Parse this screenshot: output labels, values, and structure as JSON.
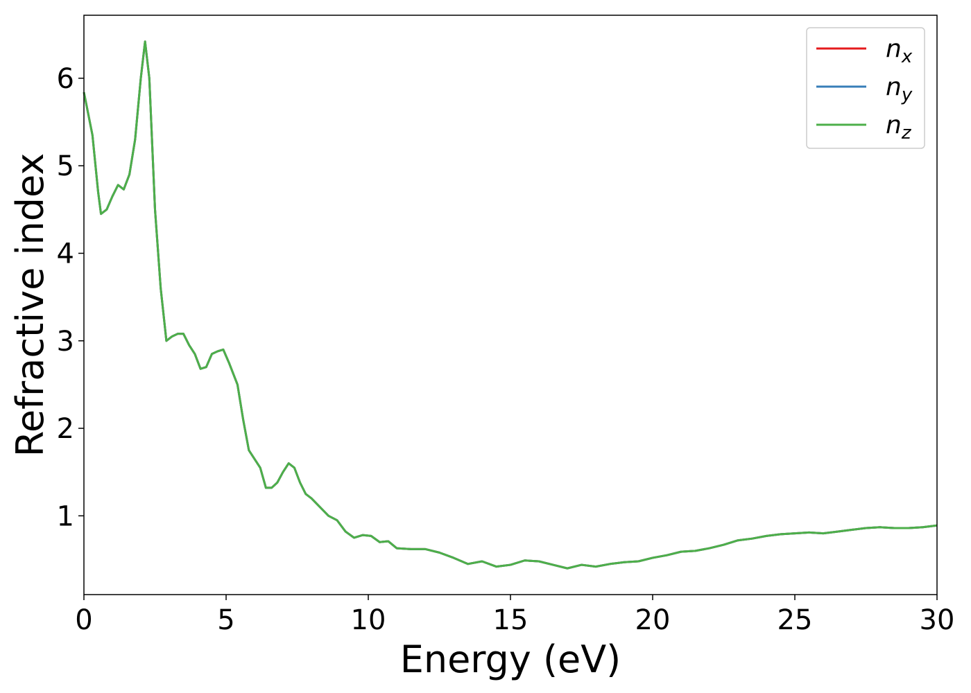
{
  "chart_data": {
    "type": "line",
    "xlabel": "Energy (eV)",
    "ylabel": "Refractive index",
    "x": [
      0,
      0.3,
      0.5,
      0.6,
      0.8,
      1.0,
      1.2,
      1.4,
      1.6,
      1.8,
      2.0,
      2.15,
      2.3,
      2.5,
      2.7,
      2.9,
      3.1,
      3.3,
      3.5,
      3.7,
      3.9,
      4.1,
      4.3,
      4.5,
      4.7,
      4.9,
      5.1,
      5.4,
      5.6,
      5.8,
      6.0,
      6.2,
      6.4,
      6.6,
      6.8,
      7.0,
      7.2,
      7.4,
      7.6,
      7.8,
      8.0,
      8.3,
      8.6,
      8.9,
      9.2,
      9.5,
      9.8,
      10.1,
      10.4,
      10.7,
      11.0,
      11.5,
      12.0,
      12.5,
      13.0,
      13.5,
      14.0,
      14.5,
      15.0,
      15.5,
      16.0,
      16.5,
      17.0,
      17.5,
      18.0,
      18.5,
      19.0,
      19.5,
      20.0,
      20.5,
      21.0,
      21.5,
      22.0,
      22.5,
      23.0,
      23.5,
      24.0,
      24.5,
      25.0,
      25.5,
      26.0,
      26.5,
      27.0,
      27.5,
      28.0,
      28.5,
      29.0,
      29.5,
      30.0
    ],
    "series": [
      {
        "name": "nx",
        "color": "#e41a1c",
        "values": [
          5.84,
          5.35,
          4.7,
          4.45,
          4.5,
          4.65,
          4.78,
          4.73,
          4.9,
          5.3,
          6.0,
          6.42,
          6.0,
          4.5,
          3.6,
          3.0,
          3.05,
          3.08,
          3.08,
          2.95,
          2.85,
          2.68,
          2.7,
          2.85,
          2.88,
          2.9,
          2.75,
          2.5,
          2.1,
          1.75,
          1.65,
          1.55,
          1.32,
          1.32,
          1.38,
          1.5,
          1.6,
          1.55,
          1.38,
          1.25,
          1.2,
          1.1,
          1.0,
          0.95,
          0.82,
          0.75,
          0.78,
          0.77,
          0.7,
          0.71,
          0.63,
          0.62,
          0.62,
          0.58,
          0.52,
          0.45,
          0.48,
          0.42,
          0.44,
          0.49,
          0.48,
          0.44,
          0.4,
          0.44,
          0.42,
          0.45,
          0.47,
          0.48,
          0.52,
          0.55,
          0.59,
          0.6,
          0.63,
          0.67,
          0.72,
          0.74,
          0.77,
          0.79,
          0.8,
          0.81,
          0.8,
          0.82,
          0.84,
          0.86,
          0.87,
          0.86,
          0.86,
          0.87,
          0.89
        ]
      },
      {
        "name": "ny",
        "color": "#377eb8",
        "values": [
          5.84,
          5.35,
          4.7,
          4.45,
          4.5,
          4.65,
          4.78,
          4.73,
          4.9,
          5.3,
          6.0,
          6.42,
          6.0,
          4.5,
          3.6,
          3.0,
          3.05,
          3.08,
          3.08,
          2.95,
          2.85,
          2.68,
          2.7,
          2.85,
          2.88,
          2.9,
          2.75,
          2.5,
          2.1,
          1.75,
          1.65,
          1.55,
          1.32,
          1.32,
          1.38,
          1.5,
          1.6,
          1.55,
          1.38,
          1.25,
          1.2,
          1.1,
          1.0,
          0.95,
          0.82,
          0.75,
          0.78,
          0.77,
          0.7,
          0.71,
          0.63,
          0.62,
          0.62,
          0.58,
          0.52,
          0.45,
          0.48,
          0.42,
          0.44,
          0.49,
          0.48,
          0.44,
          0.4,
          0.44,
          0.42,
          0.45,
          0.47,
          0.48,
          0.52,
          0.55,
          0.59,
          0.6,
          0.63,
          0.67,
          0.72,
          0.74,
          0.77,
          0.79,
          0.8,
          0.81,
          0.8,
          0.82,
          0.84,
          0.86,
          0.87,
          0.86,
          0.86,
          0.87,
          0.89
        ]
      },
      {
        "name": "nz",
        "color": "#4daf4a",
        "values": [
          5.84,
          5.35,
          4.7,
          4.45,
          4.5,
          4.65,
          4.78,
          4.73,
          4.9,
          5.3,
          6.0,
          6.42,
          6.0,
          4.5,
          3.6,
          3.0,
          3.05,
          3.08,
          3.08,
          2.95,
          2.85,
          2.68,
          2.7,
          2.85,
          2.88,
          2.9,
          2.75,
          2.5,
          2.1,
          1.75,
          1.65,
          1.55,
          1.32,
          1.32,
          1.38,
          1.5,
          1.6,
          1.55,
          1.38,
          1.25,
          1.2,
          1.1,
          1.0,
          0.95,
          0.82,
          0.75,
          0.78,
          0.77,
          0.7,
          0.71,
          0.63,
          0.62,
          0.62,
          0.58,
          0.52,
          0.45,
          0.48,
          0.42,
          0.44,
          0.49,
          0.48,
          0.44,
          0.4,
          0.44,
          0.42,
          0.45,
          0.47,
          0.48,
          0.52,
          0.55,
          0.59,
          0.6,
          0.63,
          0.67,
          0.72,
          0.74,
          0.77,
          0.79,
          0.8,
          0.81,
          0.8,
          0.82,
          0.84,
          0.86,
          0.87,
          0.86,
          0.86,
          0.87,
          0.89
        ]
      }
    ],
    "xlim": [
      0,
      30
    ],
    "xticks": [
      0,
      5,
      10,
      15,
      20,
      25,
      30
    ],
    "ylim": [
      0.1,
      6.72
    ],
    "yticks": [
      1,
      2,
      3,
      4,
      5,
      6
    ],
    "grid": false,
    "legend": "upper right"
  }
}
